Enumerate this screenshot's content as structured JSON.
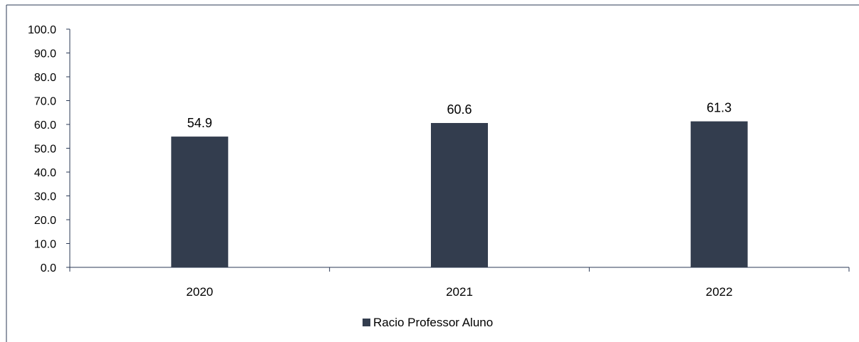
{
  "chart_data": {
    "type": "bar",
    "categories": [
      "2020",
      "2021",
      "2022"
    ],
    "series": [
      {
        "name": "Racio Professor Aluno",
        "values": [
          54.9,
          60.6,
          61.3
        ],
        "color": "#333d4e"
      }
    ],
    "data_labels": [
      "54.9",
      "60.6",
      "61.3"
    ],
    "yticks": [
      "0.0",
      "10.0",
      "20.0",
      "30.0",
      "40.0",
      "50.0",
      "60.0",
      "70.0",
      "80.0",
      "90.0",
      "100.0"
    ],
    "ylim": [
      0,
      100
    ],
    "title": "",
    "xlabel": "",
    "ylabel": "",
    "grid": false,
    "legend": {
      "position": "bottom-center",
      "entries": [
        "Racio Professor Aluno"
      ]
    }
  }
}
